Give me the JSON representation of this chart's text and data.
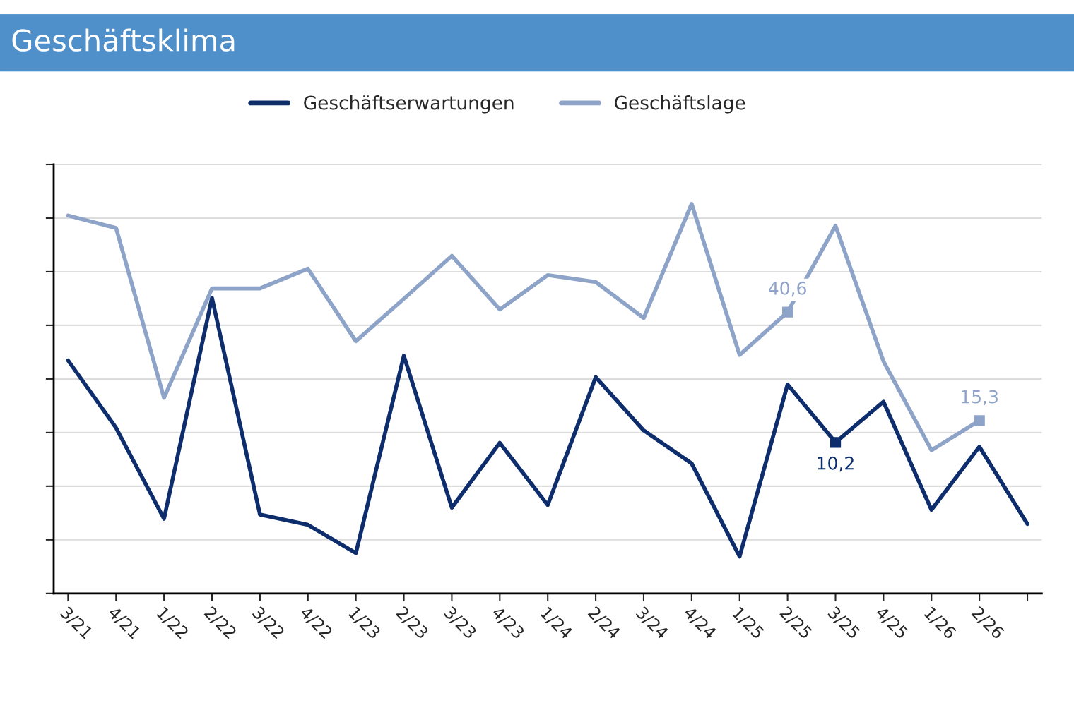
{
  "chart_data": {
    "type": "line",
    "title": "Geschäftsklima",
    "categories": [
      "3/21",
      "4/21",
      "1/22",
      "2/22",
      "3/22",
      "4/22",
      "1/23",
      "2/23",
      "3/23",
      "4/23",
      "1/24",
      "2/24",
      "3/24",
      "4/24",
      "1/25",
      "2/25",
      "3/25",
      "4/25",
      "1/26",
      "2/26",
      null
    ],
    "series": [
      {
        "name": "Geschäftserwartungen",
        "color": "#0d2d6c",
        "values": [
          29.3,
          13.6,
          -7.6,
          43.9,
          -6.6,
          -9.0,
          -15.6,
          30.4,
          -5.0,
          10.1,
          -4.4,
          25.4,
          13.0,
          5.3,
          -16.4,
          23.7,
          10.2,
          19.7,
          -5.5,
          9.2,
          -8.8
        ],
        "value_labels": [
          null,
          null,
          null,
          null,
          null,
          null,
          null,
          null,
          null,
          null,
          null,
          null,
          null,
          null,
          null,
          null,
          "10,2",
          null,
          null,
          null,
          null
        ]
      },
      {
        "name": "Geschäftslage",
        "color": "#8ea3c8",
        "values": [
          63.1,
          60.2,
          20.6,
          46.1,
          46.1,
          50.7,
          33.8,
          43.7,
          53.7,
          41.2,
          49.2,
          47.6,
          39.2,
          65.8,
          30.6,
          40.6,
          60.7,
          29.1,
          8.4,
          15.3,
          null
        ],
        "value_labels": [
          null,
          null,
          null,
          null,
          null,
          null,
          null,
          null,
          null,
          null,
          null,
          null,
          null,
          null,
          null,
          "40,6",
          null,
          null,
          null,
          "15,3",
          null
        ]
      }
    ],
    "ylim": [
      -25,
      75
    ],
    "yticks": [
      {
        "value": -25,
        "label": null
      },
      {
        "value": -12.5,
        "label": null
      },
      {
        "value": 0,
        "label": null
      },
      {
        "value": 12.5,
        "label": null
      },
      {
        "value": 25,
        "label": null
      },
      {
        "value": 37.5,
        "label": null
      },
      {
        "value": 50,
        "label": null
      },
      {
        "value": 62.5,
        "label": null
      },
      {
        "value": 75,
        "label": null
      }
    ],
    "tick_labels": "x",
    "grid": "y",
    "legend": "top"
  }
}
